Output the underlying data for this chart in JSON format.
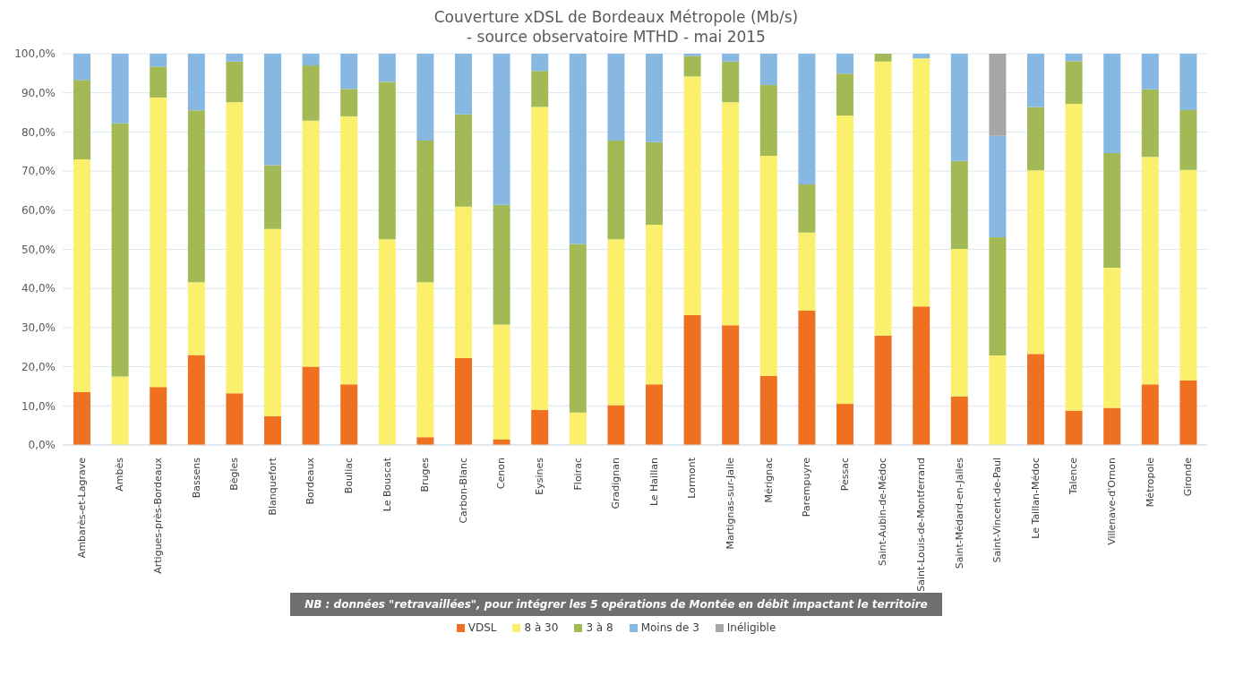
{
  "chart_data": {
    "type": "bar",
    "title": "Couverture xDSL de Bordeaux Métropole (Mb/s)",
    "subtitle": "- source observatoire MTHD - mai 2015",
    "categories": [
      "Ambarès-et-Lagrave",
      "Ambès",
      "Artigues-près-Bordeaux",
      "Bassens",
      "Bègles",
      "Blanquefort",
      "Bordeaux",
      "Bouliac",
      "Le Bouscat",
      "Bruges",
      "Carbon-Blanc",
      "Cenon",
      "Eysines",
      "Floirac",
      "Gradignan",
      "Le Haillan",
      "Lormont",
      "Martignas-sur-Jalle",
      "Mérignac",
      "Parempuyre",
      "Pessac",
      "Saint-Aubin-de-Médoc",
      "Saint-Louis-de-Montferrand",
      "Saint-Médard-en-Jalles",
      "Saint-Vincent-de-Paul",
      "Le Taillan-Médoc",
      "Talence",
      "Villenave-d'Ornon",
      "Métropole",
      "Gironde"
    ],
    "series": [
      {
        "name": "VDSL",
        "color": "#f07021",
        "values": [
          13.5,
          0,
          14.8,
          23,
          13.2,
          7.4,
          20,
          15.5,
          0,
          2,
          22.2,
          1.4,
          9,
          0,
          10.2,
          15.5,
          33.2,
          30.6,
          17.6,
          34.3,
          10.5,
          28,
          35.4,
          12.4,
          0,
          23.3,
          8.8,
          9.5,
          15.5,
          16.5
        ]
      },
      {
        "name": "8 à 30",
        "color": "#fbf06c",
        "values": [
          59.5,
          17.5,
          74,
          18.6,
          74.4,
          47.8,
          62.9,
          68.5,
          52.6,
          39.6,
          38.7,
          29.4,
          77.4,
          8.3,
          42.4,
          40.8,
          61,
          57,
          56.3,
          20,
          73.7,
          70,
          63.4,
          37.7,
          22.9,
          46.9,
          78.4,
          35.8,
          58.1,
          53.8
        ]
      },
      {
        "name": "3 à 8",
        "color": "#a2b956",
        "values": [
          20.3,
          64.7,
          7.9,
          43.9,
          10.4,
          16.3,
          14.1,
          7,
          40.2,
          36.2,
          23.6,
          30.6,
          9.2,
          43.1,
          25.2,
          21.1,
          5.2,
          10.4,
          18.1,
          12.3,
          10.7,
          2,
          0,
          22.5,
          30.2,
          16.2,
          10.9,
          29.3,
          17.3,
          15.3
        ]
      },
      {
        "name": "Moins de 3",
        "color": "#86b8e2",
        "values": [
          6.7,
          17.8,
          3.3,
          14.5,
          2,
          28.5,
          3,
          9,
          7.2,
          22.2,
          15.5,
          38.6,
          4.4,
          48.6,
          22.2,
          22.6,
          0.6,
          2,
          8,
          33.4,
          5.1,
          0,
          1.2,
          27.4,
          25.9,
          13.6,
          1.9,
          25.4,
          9.1,
          14.4
        ]
      },
      {
        "name": "Inéligible",
        "color": "#a6a6a6",
        "values": [
          0,
          0,
          0,
          0,
          0,
          0,
          0,
          0,
          0,
          0,
          0,
          0,
          0,
          0,
          0,
          0,
          0,
          0,
          0,
          0,
          0,
          0,
          0,
          0,
          21,
          0,
          0,
          0,
          0,
          0
        ]
      }
    ],
    "stacked": true,
    "ylim": [
      0,
      100
    ],
    "yticks": [
      {
        "value": 0,
        "label": "0,0%"
      },
      {
        "value": 10,
        "label": "10,0%"
      },
      {
        "value": 20,
        "label": "20,0%"
      },
      {
        "value": 30,
        "label": "30,0%"
      },
      {
        "value": 40,
        "label": "40,0%"
      },
      {
        "value": 50,
        "label": "50,0%"
      },
      {
        "value": 60,
        "label": "60,0%"
      },
      {
        "value": 70,
        "label": "70,0%"
      },
      {
        "value": 80,
        "label": "80,0%"
      },
      {
        "value": 90,
        "label": "90,0%"
      },
      {
        "value": 100,
        "label": "100,0%"
      }
    ],
    "grid": "y",
    "legend": "bottom",
    "annotations": [
      "NB : données \"retravaillées\", pour intégrer les 5 opérations de Montée en débit impactant le territoire"
    ]
  }
}
